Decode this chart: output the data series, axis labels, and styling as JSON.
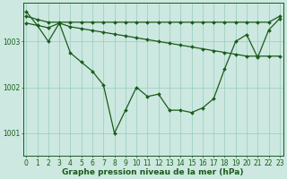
{
  "title": "Graphe pression niveau de la mer (hPa)",
  "bg_color": "#cce8e0",
  "line_color": "#1a5c1a",
  "grid_color": "#99ccbb",
  "x_values": [
    0,
    1,
    2,
    3,
    4,
    5,
    6,
    7,
    8,
    9,
    10,
    11,
    12,
    13,
    14,
    15,
    16,
    17,
    18,
    19,
    20,
    21,
    22,
    23
  ],
  "line1": [
    1003.65,
    1003.35,
    1003.0,
    1003.4,
    1002.75,
    1002.55,
    1002.35,
    1002.05,
    1001.0,
    1001.5,
    1002.0,
    1001.8,
    1001.85,
    1001.5,
    1001.5,
    1001.45,
    1001.55,
    1001.75,
    1002.4,
    1003.0,
    1003.15,
    1002.65,
    1003.25,
    1003.5
  ],
  "line2": [
    1003.4,
    1003.35,
    1003.3,
    1003.4,
    1003.32,
    1003.28,
    1003.24,
    1003.2,
    1003.16,
    1003.12,
    1003.08,
    1003.04,
    1003.0,
    1002.96,
    1002.92,
    1002.88,
    1002.84,
    1002.8,
    1002.76,
    1002.72,
    1002.68,
    1002.68,
    1002.68,
    1002.68
  ],
  "line3": [
    1003.55,
    1003.48,
    1003.42,
    1003.42,
    1003.42,
    1003.42,
    1003.42,
    1003.42,
    1003.42,
    1003.42,
    1003.42,
    1003.42,
    1003.42,
    1003.42,
    1003.42,
    1003.42,
    1003.42,
    1003.42,
    1003.42,
    1003.42,
    1003.42,
    1003.42,
    1003.42,
    1003.55
  ],
  "ylim": [
    1000.5,
    1003.85
  ],
  "yticks": [
    1001,
    1002,
    1003
  ],
  "xticks": [
    0,
    1,
    2,
    3,
    4,
    5,
    6,
    7,
    8,
    9,
    10,
    11,
    12,
    13,
    14,
    15,
    16,
    17,
    18,
    19,
    20,
    21,
    22,
    23
  ],
  "title_fontsize": 6.5,
  "tick_fontsize": 5.5,
  "marker_size": 2.0,
  "line_width": 0.9
}
